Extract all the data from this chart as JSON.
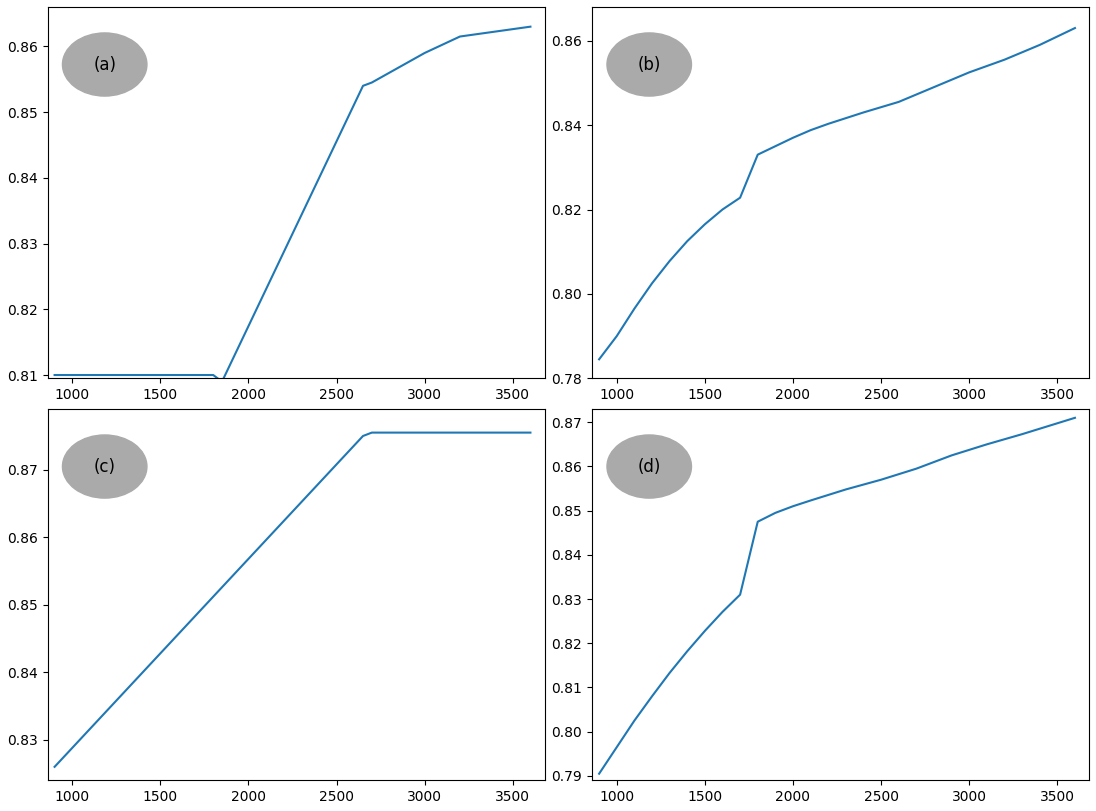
{
  "subplots": [
    {
      "label": "(a)",
      "x": [
        900,
        1800,
        1850,
        2650,
        2700,
        2800,
        2900,
        3000,
        3200,
        3600
      ],
      "y": [
        0.81,
        0.81,
        0.809,
        0.854,
        0.8545,
        0.856,
        0.8575,
        0.859,
        0.8615,
        0.863
      ],
      "ylim": [
        0.8095,
        0.866
      ],
      "yticks": [
        0.81,
        0.82,
        0.83,
        0.84,
        0.85,
        0.86
      ]
    },
    {
      "label": "(b)",
      "x": [
        900,
        1000,
        1100,
        1200,
        1300,
        1400,
        1500,
        1600,
        1700,
        1800,
        1900,
        2000,
        2100,
        2200,
        2400,
        2600,
        2800,
        3000,
        3200,
        3400,
        3600
      ],
      "y": [
        0.7845,
        0.79,
        0.7965,
        0.8025,
        0.8078,
        0.8125,
        0.8165,
        0.82,
        0.8228,
        0.833,
        0.835,
        0.837,
        0.8388,
        0.8403,
        0.843,
        0.8455,
        0.849,
        0.8525,
        0.8555,
        0.859,
        0.863
      ],
      "ylim": [
        0.78,
        0.868
      ],
      "yticks": [
        0.78,
        0.8,
        0.82,
        0.84,
        0.86
      ]
    },
    {
      "label": "(c)",
      "x": [
        900,
        2650,
        2700,
        3600
      ],
      "y": [
        0.826,
        0.875,
        0.8755,
        0.8755
      ],
      "ylim": [
        0.824,
        0.879
      ],
      "yticks": [
        0.83,
        0.84,
        0.85,
        0.86,
        0.87
      ]
    },
    {
      "label": "(d)",
      "x": [
        900,
        1000,
        1100,
        1200,
        1300,
        1400,
        1500,
        1600,
        1700,
        1800,
        1900,
        2000,
        2100,
        2300,
        2500,
        2700,
        2900,
        3100,
        3300,
        3600
      ],
      "y": [
        0.7905,
        0.7965,
        0.8025,
        0.808,
        0.8133,
        0.8182,
        0.8228,
        0.8271,
        0.831,
        0.8475,
        0.8495,
        0.851,
        0.8523,
        0.8548,
        0.857,
        0.8595,
        0.8625,
        0.865,
        0.8673,
        0.871
      ],
      "ylim": [
        0.789,
        0.873
      ],
      "yticks": [
        0.79,
        0.8,
        0.81,
        0.82,
        0.83,
        0.84,
        0.85,
        0.86,
        0.87
      ]
    }
  ],
  "line_color": "#1f77b4",
  "circle_color": "#aaaaaa",
  "circle_text_color": "black",
  "xlim": [
    860,
    3680
  ],
  "xticks": [
    1000,
    1500,
    2000,
    2500,
    3000,
    3500
  ]
}
